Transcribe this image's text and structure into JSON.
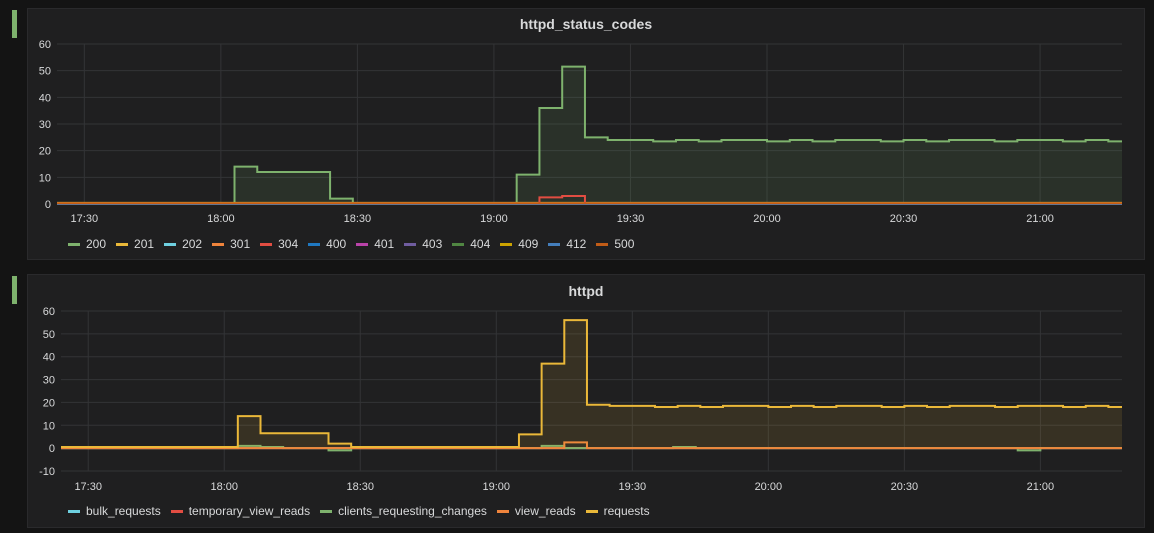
{
  "panels": [
    {
      "title": "httpd_status_codes",
      "chart_data": {
        "type": "line",
        "title": "httpd_status_codes",
        "x_ticks": [
          "17:30",
          "18:00",
          "18:30",
          "19:00",
          "19:30",
          "20:00",
          "20:30",
          "21:00"
        ],
        "y_ticks": [
          "0",
          "10",
          "20",
          "30",
          "40",
          "50",
          "60"
        ],
        "ylim": [
          0,
          60
        ],
        "xlim_minutes": [
          1044,
          1278
        ],
        "grid": true,
        "legend_position": "bottom-left",
        "series": [
          {
            "name": "200",
            "color": "#7eb26d",
            "fill": true,
            "steps": [
              [
                1044,
                0
              ],
              [
                1083,
                14
              ],
              [
                1088,
                12
              ],
              [
                1104,
                2
              ],
              [
                1109,
                0
              ],
              [
                1145,
                11
              ],
              [
                1150,
                36
              ],
              [
                1155,
                51.5
              ],
              [
                1160,
                25
              ],
              [
                1165,
                24
              ],
              [
                1175,
                23.5
              ],
              [
                1180,
                24
              ],
              [
                1185,
                23.5
              ],
              [
                1190,
                24
              ],
              [
                1200,
                23.5
              ],
              [
                1205,
                24
              ],
              [
                1210,
                23.5
              ],
              [
                1215,
                24
              ],
              [
                1225,
                23.5
              ],
              [
                1230,
                24
              ],
              [
                1235,
                23.5
              ],
              [
                1240,
                24
              ],
              [
                1250,
                23.5
              ],
              [
                1255,
                24
              ],
              [
                1265,
                23.5
              ],
              [
                1270,
                24
              ],
              [
                1275,
                23.5
              ],
              [
                1278,
                23.5
              ]
            ]
          },
          {
            "name": "201",
            "color": "#eab839",
            "steps": [
              [
                1044,
                0.4
              ],
              [
                1278,
                0.4
              ]
            ]
          },
          {
            "name": "202",
            "color": "#6ed0e0",
            "steps": [
              [
                1044,
                0
              ],
              [
                1278,
                0
              ]
            ]
          },
          {
            "name": "301",
            "color": "#ef843c",
            "steps": [
              [
                1044,
                0.2
              ],
              [
                1278,
                0.2
              ]
            ]
          },
          {
            "name": "304",
            "color": "#e24d42",
            "steps": [
              [
                1044,
                0
              ],
              [
                1150,
                2.5
              ],
              [
                1155,
                3
              ],
              [
                1160,
                0
              ],
              [
                1278,
                0
              ]
            ]
          },
          {
            "name": "400",
            "color": "#1f78c1",
            "steps": [
              [
                1044,
                0
              ],
              [
                1278,
                0
              ]
            ]
          },
          {
            "name": "401",
            "color": "#ba43a9",
            "steps": [
              [
                1044,
                0
              ],
              [
                1278,
                0
              ]
            ]
          },
          {
            "name": "403",
            "color": "#705da0",
            "steps": [
              [
                1044,
                0
              ],
              [
                1278,
                0
              ]
            ]
          },
          {
            "name": "404",
            "color": "#508642",
            "steps": [
              [
                1044,
                0
              ],
              [
                1278,
                0
              ]
            ]
          },
          {
            "name": "409",
            "color": "#cca300",
            "steps": [
              [
                1044,
                0
              ],
              [
                1278,
                0
              ]
            ]
          },
          {
            "name": "412",
            "color": "#447ebc",
            "steps": [
              [
                1044,
                0
              ],
              [
                1278,
                0
              ]
            ]
          },
          {
            "name": "500",
            "color": "#c15c17",
            "steps": [
              [
                1044,
                0.3
              ],
              [
                1278,
                0.3
              ]
            ]
          }
        ]
      }
    },
    {
      "title": "httpd",
      "chart_data": {
        "type": "line",
        "title": "httpd",
        "x_ticks": [
          "17:30",
          "18:00",
          "18:30",
          "19:00",
          "19:30",
          "20:00",
          "20:30",
          "21:00"
        ],
        "y_ticks": [
          "-10",
          "0",
          "10",
          "20",
          "30",
          "40",
          "50",
          "60"
        ],
        "ylim": [
          -10,
          60
        ],
        "xlim_minutes": [
          1044,
          1278
        ],
        "grid": true,
        "legend_position": "bottom-left",
        "series": [
          {
            "name": "bulk_requests",
            "color": "#6ed0e0",
            "steps": [
              [
                1044,
                0
              ],
              [
                1278,
                0
              ]
            ]
          },
          {
            "name": "temporary_view_reads",
            "color": "#e24d42",
            "steps": [
              [
                1044,
                0
              ],
              [
                1278,
                0
              ]
            ]
          },
          {
            "name": "clients_requesting_changes",
            "color": "#7eb26d",
            "steps": [
              [
                1044,
                0
              ],
              [
                1083,
                1
              ],
              [
                1088,
                0.5
              ],
              [
                1093,
                0
              ],
              [
                1103,
                -1
              ],
              [
                1108,
                0
              ],
              [
                1145,
                0
              ],
              [
                1150,
                1
              ],
              [
                1155,
                0
              ],
              [
                1179,
                0.5
              ],
              [
                1184,
                0
              ],
              [
                1250,
                0
              ],
              [
                1255,
                -1
              ],
              [
                1260,
                0
              ],
              [
                1278,
                0
              ]
            ]
          },
          {
            "name": "view_reads",
            "color": "#ef843c",
            "steps": [
              [
                1044,
                0
              ],
              [
                1150,
                0
              ],
              [
                1155,
                2.5
              ],
              [
                1160,
                0
              ],
              [
                1278,
                0
              ]
            ]
          },
          {
            "name": "requests",
            "color": "#eab839",
            "fill": true,
            "steps": [
              [
                1044,
                0.5
              ],
              [
                1083,
                14
              ],
              [
                1088,
                6.5
              ],
              [
                1103,
                2
              ],
              [
                1108,
                0.5
              ],
              [
                1145,
                6
              ],
              [
                1150,
                37
              ],
              [
                1155,
                56
              ],
              [
                1160,
                19
              ],
              [
                1165,
                18.5
              ],
              [
                1175,
                18
              ],
              [
                1180,
                18.5
              ],
              [
                1185,
                18
              ],
              [
                1190,
                18.5
              ],
              [
                1200,
                18
              ],
              [
                1205,
                18.5
              ],
              [
                1210,
                18
              ],
              [
                1215,
                18.5
              ],
              [
                1225,
                18
              ],
              [
                1230,
                18.5
              ],
              [
                1235,
                18
              ],
              [
                1240,
                18.5
              ],
              [
                1250,
                18
              ],
              [
                1255,
                18.5
              ],
              [
                1265,
                18
              ],
              [
                1270,
                18.5
              ],
              [
                1275,
                18
              ],
              [
                1278,
                18
              ]
            ]
          }
        ]
      }
    }
  ]
}
